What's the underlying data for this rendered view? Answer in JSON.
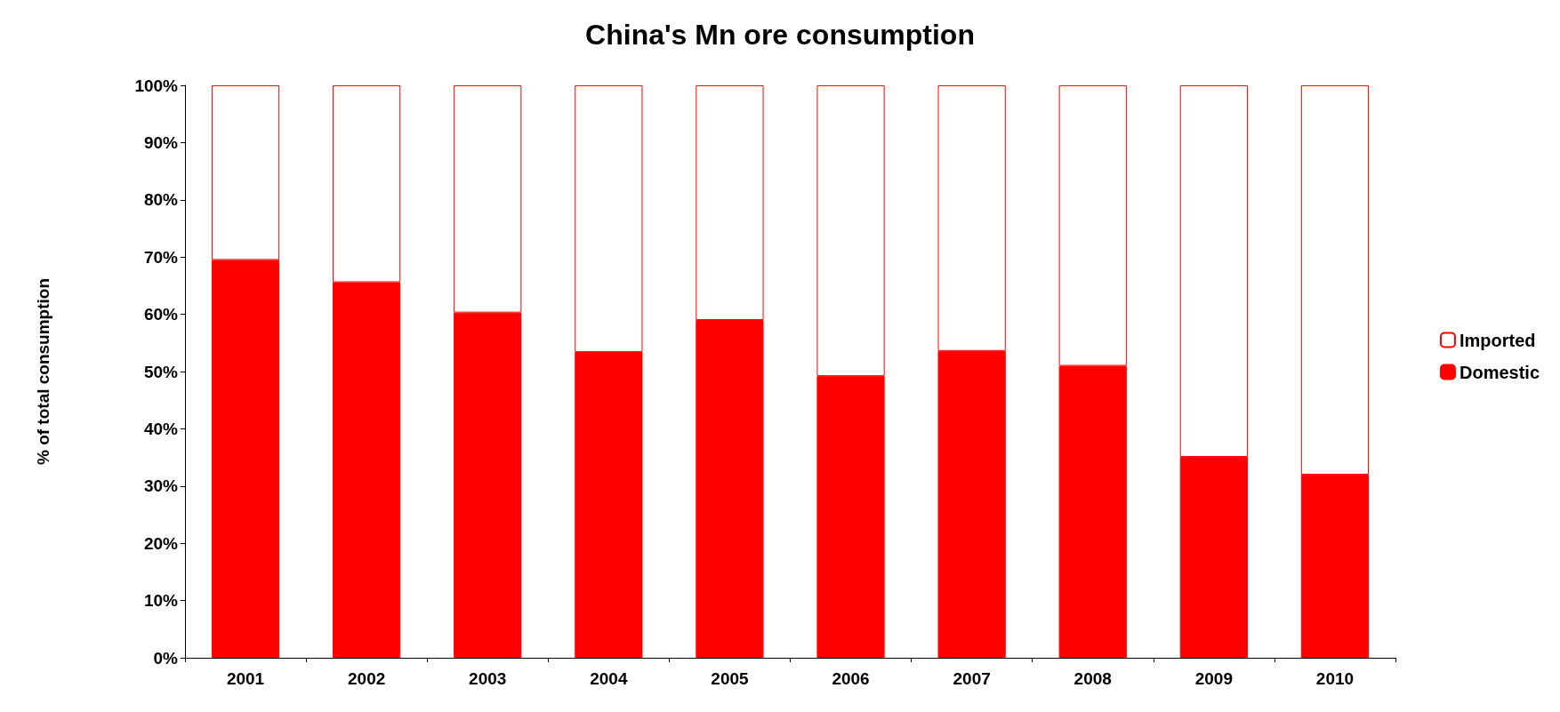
{
  "chart_data": {
    "type": "bar",
    "title": "China's Mn ore consumption",
    "ylabel": "% of total consumption",
    "categories": [
      "2001",
      "2002",
      "2003",
      "2004",
      "2005",
      "2006",
      "2007",
      "2008",
      "2009",
      "2010"
    ],
    "stacked": true,
    "series": [
      {
        "name": "Domestic",
        "color": "#ff0000",
        "values": [
          69.5,
          65.6,
          60.3,
          53.4,
          59.0,
          49.2,
          53.6,
          51.0,
          35.1,
          32.0
        ]
      },
      {
        "name": "Imported",
        "color": "#ffffff",
        "values": [
          30.5,
          34.4,
          39.7,
          46.6,
          41.0,
          50.8,
          46.4,
          49.0,
          64.9,
          68.0
        ]
      }
    ],
    "ylim": [
      0,
      100
    ],
    "yticks": [
      {
        "value": 0,
        "label": "0%"
      },
      {
        "value": 10,
        "label": "10%"
      },
      {
        "value": 20,
        "label": "20%"
      },
      {
        "value": 30,
        "label": "30%"
      },
      {
        "value": 40,
        "label": "40%"
      },
      {
        "value": 50,
        "label": "50%"
      },
      {
        "value": 60,
        "label": "60%"
      },
      {
        "value": 70,
        "label": "70%"
      },
      {
        "value": 80,
        "label": "80%"
      },
      {
        "value": 90,
        "label": "90%"
      },
      {
        "value": 100,
        "label": "100%"
      }
    ],
    "grid": false,
    "legend": "right"
  }
}
